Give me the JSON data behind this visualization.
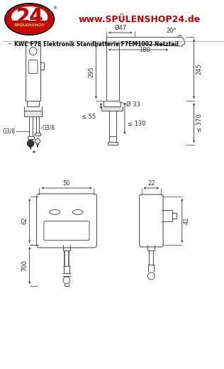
{
  "bg_color": "#ffffff",
  "logo_red": "#cc0000",
  "logo_yellow": "#ffdd00",
  "website_text": "www.SPÜLENSHOP24.de",
  "website_color": "#cc0000",
  "title_text": "KWC F7E Elektronik Standbatterie F7EM1002 Netzteil",
  "title_color": "#000000",
  "line_color": "#555555",
  "dim_color": "#333333",
  "dim_fontsize": 6.0,
  "annotations": {
    "d47": "Ø47",
    "d33": "Ø 33",
    "angle": "20°",
    "dim_295": "295",
    "dim_180": "180",
    "dim_245": "245",
    "dim_55": "≤ 55",
    "dim_130": "≤ 130",
    "dim_370": "≤ 370",
    "g38_left": "G3/8",
    "g38_right": "G3/8",
    "dim_50": "50",
    "dim_22": "22",
    "dim_62": "62",
    "dim_41": "41",
    "dim_700": "700"
  }
}
